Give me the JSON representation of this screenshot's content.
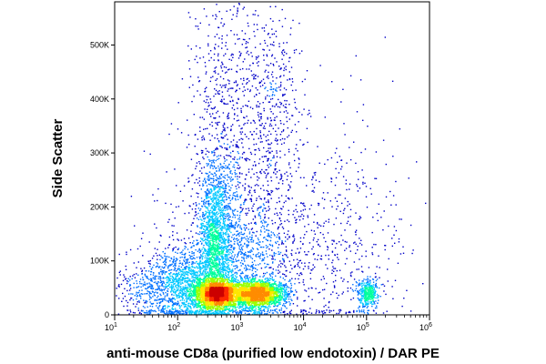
{
  "chart_data": {
    "type": "scatter",
    "style": "density-colored flow cytometry dot plot",
    "title": "",
    "xlabel": "anti-mouse CD8a (purified low endotoxin) / DAR PE",
    "ylabel": "Side Scatter",
    "x_scale": "log",
    "xlim": [
      10,
      1000000
    ],
    "ylim": [
      0,
      580000
    ],
    "grid": false,
    "legend": "none",
    "x_tick_labels": [
      {
        "value": 10,
        "base": "10",
        "exp": "1"
      },
      {
        "value": 100,
        "base": "10",
        "exp": "2"
      },
      {
        "value": 1000,
        "base": "10",
        "exp": "3"
      },
      {
        "value": 10000,
        "base": "10",
        "exp": "4"
      },
      {
        "value": 100000,
        "base": "10",
        "exp": "5"
      },
      {
        "value": 1000000,
        "base": "10",
        "exp": "6"
      }
    ],
    "y_tick_labels": [
      {
        "value": 0,
        "label": "0"
      },
      {
        "value": 100000,
        "label": "100K"
      },
      {
        "value": 200000,
        "label": "200K"
      },
      {
        "value": 300000,
        "label": "300K"
      },
      {
        "value": 400000,
        "label": "400K"
      },
      {
        "value": 500000,
        "label": "500K"
      }
    ],
    "density_colors": [
      "#0000c8",
      "#0070ff",
      "#00c8ff",
      "#00ff9c",
      "#9cff00",
      "#ffe600",
      "#ff8c00",
      "#ff2a00",
      "#cc0000"
    ],
    "populations": [
      {
        "x_log10_center": 2.62,
        "x_log10_spread": 0.16,
        "y_center": 40000,
        "y_spread": 12000,
        "weight": 2600
      },
      {
        "x_log10_center": 3.25,
        "x_log10_spread": 0.22,
        "y_center": 40000,
        "y_spread": 12000,
        "weight": 2400
      },
      {
        "x_log10_center": 2.6,
        "x_log10_spread": 0.13,
        "y_center": 150000,
        "y_spread": 70000,
        "weight": 1500
      },
      {
        "x_log10_center": 2.2,
        "x_log10_spread": 0.35,
        "y_center": 55000,
        "y_spread": 35000,
        "weight": 1500
      },
      {
        "x_log10_center": 3.0,
        "x_log10_spread": 0.6,
        "y_center": 110000,
        "y_spread": 80000,
        "weight": 1400
      },
      {
        "x_log10_center": 2.75,
        "x_log10_spread": 0.3,
        "y_center": 360000,
        "y_spread": 140000,
        "weight": 650
      },
      {
        "x_log10_center": 3.45,
        "x_log10_spread": 0.25,
        "y_center": 370000,
        "y_spread": 120000,
        "weight": 500
      },
      {
        "x_log10_center": 5.0,
        "x_log10_spread": 0.09,
        "y_center": 42000,
        "y_spread": 14000,
        "weight": 380
      },
      {
        "x_log10_center": 4.6,
        "x_log10_spread": 0.5,
        "y_center": 140000,
        "y_spread": 110000,
        "weight": 400
      },
      {
        "x_log10_center": 1.55,
        "x_log10_spread": 0.3,
        "y_center": 45000,
        "y_spread": 30000,
        "weight": 250
      }
    ]
  }
}
